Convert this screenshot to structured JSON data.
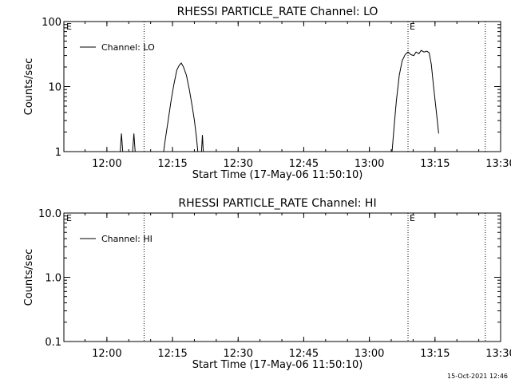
{
  "footer_timestamp": "15-Oct-2021 12:46",
  "chart_data": [
    {
      "type": "line",
      "title": "RHESSI PARTICLE_RATE Channel: LO",
      "xlabel": "Start Time (17-May-06 11:50:10)",
      "ylabel": "Counts/sec",
      "yscale": "log",
      "ylim": [
        1,
        100
      ],
      "xlim": [
        "11:50:10",
        "13:30:00"
      ],
      "x_ticks": [
        "12:00",
        "12:15",
        "12:30",
        "12:45",
        "13:00",
        "13:15",
        "13:30"
      ],
      "y_ticks": [
        "1",
        "10",
        "100"
      ],
      "legend": {
        "label": "Channel: LO",
        "placement": "top-left"
      },
      "markers": [
        {
          "label": "E",
          "x": "11:50:10"
        },
        {
          "label": "",
          "x": "12:08:30"
        },
        {
          "label": "E",
          "x": "13:08:50"
        },
        {
          "label": "",
          "x": "13:26:30"
        }
      ],
      "segments": [
        [
          {
            "x": "12:02:50",
            "y": 0.6
          },
          {
            "x": "12:03:20",
            "y": 1.9
          },
          {
            "x": "12:03:50",
            "y": 0.6
          }
        ],
        [
          {
            "x": "12:05:40",
            "y": 0.6
          },
          {
            "x": "12:06:10",
            "y": 1.9
          },
          {
            "x": "12:06:40",
            "y": 0.6
          }
        ],
        [
          {
            "x": "12:12:40",
            "y": 0.7
          },
          {
            "x": "12:13:20",
            "y": 1.5
          },
          {
            "x": "12:14:00",
            "y": 3.0
          },
          {
            "x": "12:14:40",
            "y": 6.0
          },
          {
            "x": "12:15:20",
            "y": 11.0
          },
          {
            "x": "12:16:00",
            "y": 18.0
          },
          {
            "x": "12:16:30",
            "y": 21.0
          },
          {
            "x": "12:17:00",
            "y": 23.0
          },
          {
            "x": "12:17:30",
            "y": 20.0
          },
          {
            "x": "12:18:10",
            "y": 15.0
          },
          {
            "x": "12:18:50",
            "y": 9.0
          },
          {
            "x": "12:19:30",
            "y": 5.0
          },
          {
            "x": "12:20:00",
            "y": 3.0
          },
          {
            "x": "12:20:30",
            "y": 1.6
          },
          {
            "x": "12:21:00",
            "y": 0.7
          }
        ],
        [
          {
            "x": "12:21:30",
            "y": 0.7
          },
          {
            "x": "12:21:50",
            "y": 1.8
          },
          {
            "x": "12:22:10",
            "y": 0.7
          }
        ],
        [
          {
            "x": "13:05:00",
            "y": 0.7
          },
          {
            "x": "13:05:40",
            "y": 2.5
          },
          {
            "x": "13:06:10",
            "y": 6.0
          },
          {
            "x": "13:06:50",
            "y": 15.0
          },
          {
            "x": "13:07:30",
            "y": 25.0
          },
          {
            "x": "13:08:10",
            "y": 31.0
          },
          {
            "x": "13:08:50",
            "y": 34.0
          },
          {
            "x": "13:09:30",
            "y": 31.0
          },
          {
            "x": "13:10:10",
            "y": 30.0
          },
          {
            "x": "13:10:40",
            "y": 34.0
          },
          {
            "x": "13:11:20",
            "y": 32.0
          },
          {
            "x": "13:11:50",
            "y": 36.0
          },
          {
            "x": "13:12:30",
            "y": 34.0
          },
          {
            "x": "13:13:10",
            "y": 35.0
          },
          {
            "x": "13:13:40",
            "y": 33.0
          },
          {
            "x": "13:14:10",
            "y": 22.0
          },
          {
            "x": "13:14:40",
            "y": 10.0
          },
          {
            "x": "13:15:20",
            "y": 4.0
          },
          {
            "x": "13:15:50",
            "y": 1.9
          }
        ]
      ]
    },
    {
      "type": "line",
      "title": "RHESSI PARTICLE_RATE Channel: HI",
      "xlabel": "Start Time (17-May-06 11:50:10)",
      "ylabel": "Counts/sec",
      "yscale": "log",
      "ylim": [
        0.1,
        10
      ],
      "xlim": [
        "11:50:10",
        "13:30:00"
      ],
      "x_ticks": [
        "12:00",
        "12:15",
        "12:30",
        "12:45",
        "13:00",
        "13:15",
        "13:30"
      ],
      "y_ticks": [
        "0.1",
        "1.0",
        "10.0"
      ],
      "legend": {
        "label": "Channel: HI",
        "placement": "top-left"
      },
      "markers": [
        {
          "label": "E",
          "x": "11:50:10"
        },
        {
          "label": "",
          "x": "12:08:30"
        },
        {
          "label": "E",
          "x": "13:08:50"
        },
        {
          "label": "",
          "x": "13:26:30"
        }
      ],
      "segments": []
    }
  ]
}
